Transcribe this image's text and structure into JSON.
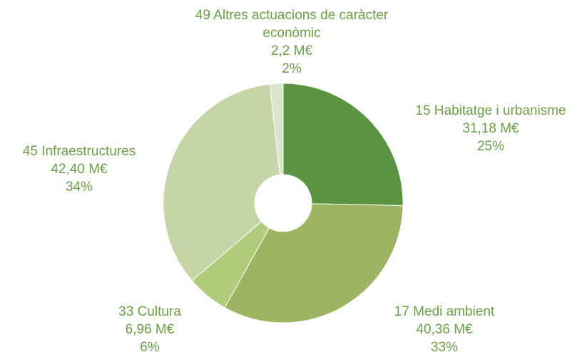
{
  "chart_data": {
    "type": "donut",
    "categories": [
      "15 Habitatge i urbanisme",
      "17 Medi ambient",
      "33 Cultura",
      "45 Infraestructures",
      "49 Altres actuacions de caràcter econòmic"
    ],
    "values": [
      31.18,
      40.36,
      6.96,
      42.4,
      2.2
    ],
    "value_labels": [
      "31,18 M€",
      "40,36 M€",
      "6,96 M€",
      "42,40 M€",
      "2,2 M€"
    ],
    "percents": [
      25,
      33,
      6,
      34,
      2
    ],
    "percent_labels": [
      "25%",
      "33%",
      "6%",
      "34%",
      "2%"
    ],
    "colors": [
      "#5a9440",
      "#9db563",
      "#b0cb7a",
      "#c5d5a8",
      "#dbe5cb"
    ]
  }
}
